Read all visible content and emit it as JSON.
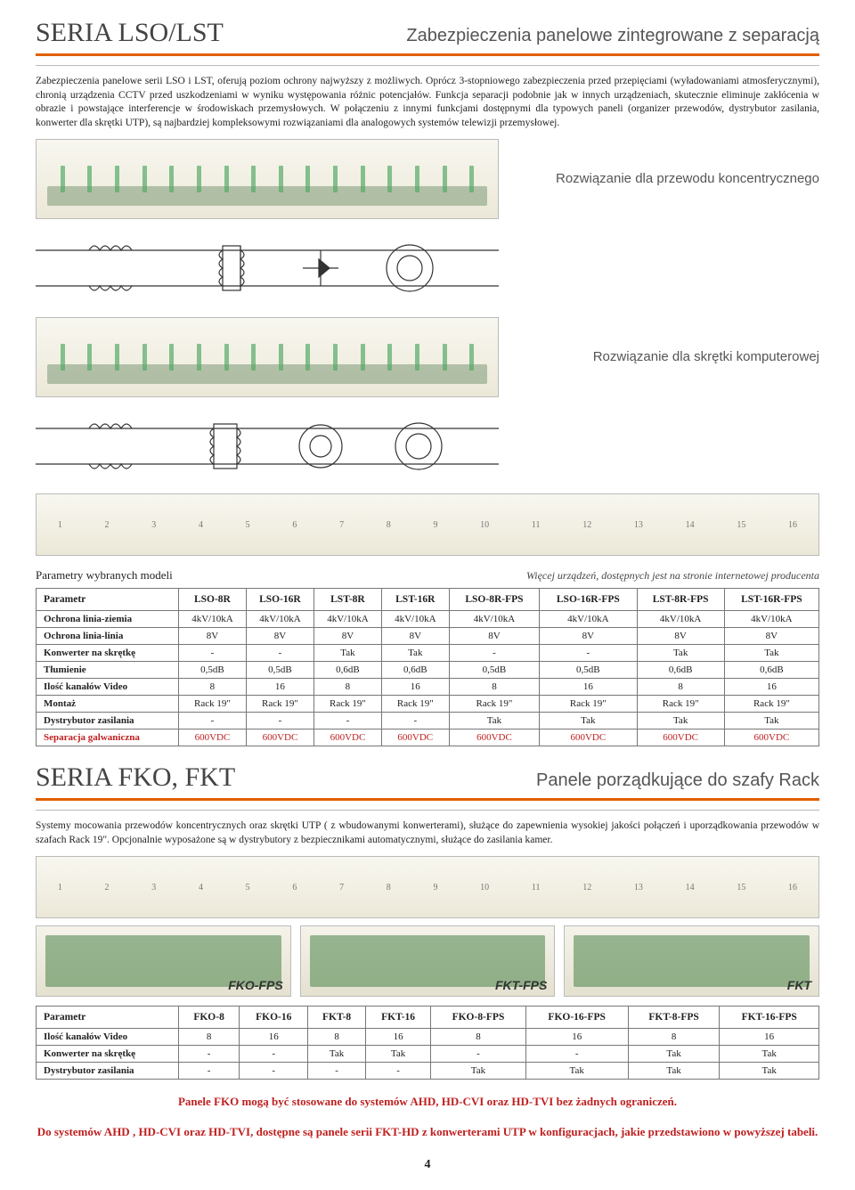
{
  "sec1": {
    "title": "SERIA LSO/LST",
    "subtitle": "Zabezpieczenia panelowe zintegrowane z separacją",
    "para": "Zabezpieczenia panelowe serii LSO i LST, oferują poziom ochrony najwyższy z możliwych. Oprócz 3-stopniowego zabezpieczenia przed przepięciami (wyładowaniami atmosferycznymi), chronią urządzenia CCTV przed uszkodzeniami w wyniku występowania różnic potencjałów. Funkcja separacji podobnie jak w innych urządzeniach, skutecznie eliminuje zakłócenia w obrazie i powstające interferencje w środowiskach przemysłowych. W połączeniu z innymi funkcjami dostępnymi dla typowych paneli (organizer przewodów, dystrybutor zasilania, konwerter dla skrętki UTP), są najbardziej kompleksowymi rozwiązaniami dla analogowych systemów telewizji przemysłowej.",
    "cap1": "Rozwiązanie dla przewodu koncentrycznego",
    "cap2": "Rozwiązanie dla skrętki komputerowej",
    "params_label": "Parametry wybranych modeli",
    "params_right": "Więcej urządzeń, dostępnych jest na stronie internetowej producenta",
    "head": [
      "Parametr",
      "LSO-8R",
      "LSO-16R",
      "LST-8R",
      "LST-16R",
      "LSO-8R-FPS",
      "LSO-16R-FPS",
      "LST-8R-FPS",
      "LST-16R-FPS"
    ],
    "rows": [
      {
        "red": false,
        "c": [
          "Ochrona linia-ziemia",
          "4kV/10kA",
          "4kV/10kA",
          "4kV/10kA",
          "4kV/10kA",
          "4kV/10kA",
          "4kV/10kA",
          "4kV/10kA",
          "4kV/10kA"
        ]
      },
      {
        "red": false,
        "c": [
          "Ochrona linia-linia",
          "8V",
          "8V",
          "8V",
          "8V",
          "8V",
          "8V",
          "8V",
          "8V"
        ]
      },
      {
        "red": false,
        "c": [
          "Konwerter na skrętkę",
          "-",
          "-",
          "Tak",
          "Tak",
          "-",
          "-",
          "Tak",
          "Tak"
        ]
      },
      {
        "red": false,
        "c": [
          "Tłumienie",
          "0,5dB",
          "0,5dB",
          "0,6dB",
          "0,6dB",
          "0,5dB",
          "0,5dB",
          "0,6dB",
          "0,6dB"
        ]
      },
      {
        "red": false,
        "c": [
          "Ilość kanałów Video",
          "8",
          "16",
          "8",
          "16",
          "8",
          "16",
          "8",
          "16"
        ]
      },
      {
        "red": false,
        "c": [
          "Montaż",
          "Rack 19\"",
          "Rack 19\"",
          "Rack 19\"",
          "Rack 19\"",
          "Rack 19\"",
          "Rack 19\"",
          "Rack 19\"",
          "Rack 19\""
        ]
      },
      {
        "red": false,
        "c": [
          "Dystrybutor zasilania",
          "-",
          "-",
          "-",
          "-",
          "Tak",
          "Tak",
          "Tak",
          "Tak"
        ]
      },
      {
        "red": true,
        "c": [
          "Separacja galwaniczna",
          "600VDC",
          "600VDC",
          "600VDC",
          "600VDC",
          "600VDC",
          "600VDC",
          "600VDC",
          "600VDC"
        ]
      }
    ]
  },
  "sec2": {
    "title": "SERIA FKO, FKT",
    "subtitle": "Panele porządkujące do szafy Rack",
    "para": "Systemy mocowania przewodów koncentrycznych oraz skrętki UTP ( z wbudowanymi konwerterami), służące do zapewnienia wysokiej jakości połączeń i uporządkowania przewodów w szafach Rack 19\". Opcjonalnie wyposażone są w dystrybutory z bezpiecznikami automatycznymi, służące do zasilania kamer.",
    "labels": [
      "FKO-FPS",
      "FKT-FPS",
      "FKT"
    ],
    "head": [
      "Parametr",
      "FKO-8",
      "FKO-16",
      "FKT-8",
      "FKT-16",
      "FKO-8-FPS",
      "FKO-16-FPS",
      "FKT-8-FPS",
      "FKT-16-FPS"
    ],
    "rows": [
      {
        "red": false,
        "c": [
          "Ilość kanałów Video",
          "8",
          "16",
          "8",
          "16",
          "8",
          "16",
          "8",
          "16"
        ]
      },
      {
        "red": false,
        "c": [
          "Konwerter na skrętkę",
          "-",
          "-",
          "Tak",
          "Tak",
          "-",
          "-",
          "Tak",
          "Tak"
        ]
      },
      {
        "red": false,
        "c": [
          "Dystrybutor zasilania",
          "-",
          "-",
          "-",
          "-",
          "Tak",
          "Tak",
          "Tak",
          "Tak"
        ]
      }
    ],
    "footer1": "Panele FKO mogą być stosowane do systemów AHD, HD-CVI oraz HD-TVI bez żadnych ograniczeń.",
    "footer2": "Do systemów AHD , HD-CVI oraz HD-TVI, dostępne są panele serii FKT-HD z konwerterami UTP w konfiguracjach, jakie przedstawiono w powyższej tabeli."
  },
  "page": "4"
}
